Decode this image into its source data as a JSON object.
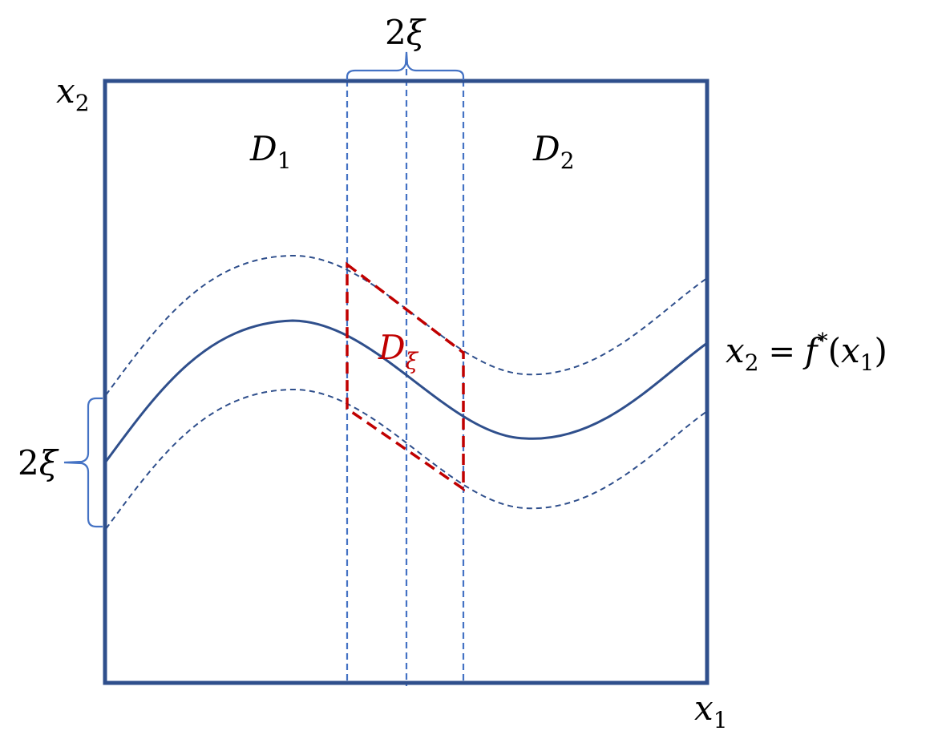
{
  "colors": {
    "frame": "#2f4f8c",
    "curve": "#2f4f8c",
    "guide": "#4472c4",
    "region": "#c00000",
    "text": "#000000"
  },
  "labels": {
    "x2_axis": {
      "base": "x",
      "sub": "2"
    },
    "x1_axis": {
      "base": "x",
      "sub": "1"
    },
    "d1": {
      "base": "D",
      "sub": "1"
    },
    "d2": {
      "base": "D",
      "sub": "2"
    },
    "d_xi": {
      "base": "D",
      "sub": "ξ"
    },
    "top_width": {
      "coef": "2",
      "sym": "ξ"
    },
    "left_width": {
      "coef": "2",
      "sym": "ξ"
    },
    "curve_eq": {
      "lhs_base": "x",
      "lhs_sub": "2",
      "eq": "=",
      "fn": "f",
      "star": "*",
      "open": "(",
      "arg_base": "x",
      "arg_sub": "1",
      "close": ")"
    }
  }
}
